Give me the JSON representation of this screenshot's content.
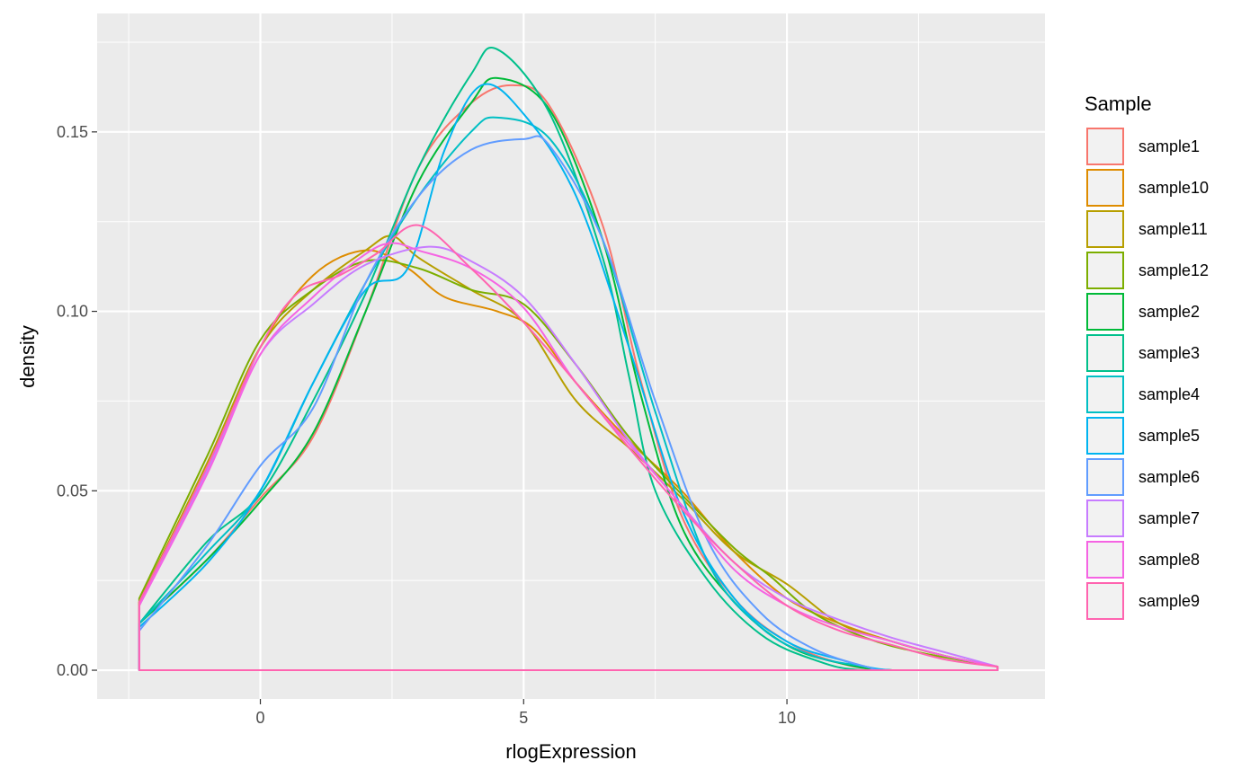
{
  "chart_data": {
    "type": "line",
    "subtype": "density",
    "title": "",
    "xlabel": "rlogExpression",
    "ylabel": "density",
    "xlim": [
      -3.1,
      14.9
    ],
    "ylim": [
      -0.008,
      0.183
    ],
    "x_ticks": [
      0,
      5,
      10
    ],
    "y_ticks": [
      0.0,
      0.05,
      0.1,
      0.15
    ],
    "x_tick_labels": [
      "0",
      "5",
      "10"
    ],
    "y_tick_labels": [
      "0.00",
      "0.05",
      "0.10",
      "0.15"
    ],
    "grid": true,
    "legend": {
      "title": "Sample",
      "position": "right"
    },
    "x_range": [
      -2.3,
      14.0
    ],
    "series": [
      {
        "name": "sample1",
        "color": "#F8766D",
        "group": "B",
        "points": [
          [
            -2.3,
            0.013
          ],
          [
            -1.0,
            0.031
          ],
          [
            0,
            0.048
          ],
          [
            1.0,
            0.065
          ],
          [
            2.0,
            0.1
          ],
          [
            3.0,
            0.14
          ],
          [
            4.0,
            0.158
          ],
          [
            4.8,
            0.163
          ],
          [
            5.5,
            0.157
          ],
          [
            6.5,
            0.124
          ],
          [
            7.2,
            0.082
          ],
          [
            8.0,
            0.043
          ],
          [
            9.0,
            0.02
          ],
          [
            10.0,
            0.008
          ],
          [
            11.0,
            0.002
          ],
          [
            12.0,
            0.0
          ]
        ]
      },
      {
        "name": "sample10",
        "color": "#DE8C00",
        "group": "A",
        "points": [
          [
            -2.3,
            0.019
          ],
          [
            -1.0,
            0.058
          ],
          [
            0,
            0.09
          ],
          [
            1.0,
            0.11
          ],
          [
            2.0,
            0.117
          ],
          [
            2.8,
            0.112
          ],
          [
            3.5,
            0.104
          ],
          [
            4.5,
            0.1
          ],
          [
            5.2,
            0.095
          ],
          [
            6.0,
            0.08
          ],
          [
            7.0,
            0.064
          ],
          [
            8.0,
            0.05
          ],
          [
            9.0,
            0.033
          ],
          [
            10.0,
            0.02
          ],
          [
            11.0,
            0.013
          ],
          [
            12.0,
            0.008
          ],
          [
            13.0,
            0.004
          ],
          [
            14.0,
            0.001
          ]
        ]
      },
      {
        "name": "sample11",
        "color": "#B79F00",
        "group": "A",
        "points": [
          [
            -2.3,
            0.019
          ],
          [
            -1.0,
            0.058
          ],
          [
            0,
            0.09
          ],
          [
            1.0,
            0.106
          ],
          [
            2.0,
            0.117
          ],
          [
            2.5,
            0.121
          ],
          [
            3.0,
            0.115
          ],
          [
            4.0,
            0.106
          ],
          [
            5.0,
            0.097
          ],
          [
            6.0,
            0.075
          ],
          [
            7.0,
            0.062
          ],
          [
            8.0,
            0.048
          ],
          [
            9.0,
            0.033
          ],
          [
            10.0,
            0.024
          ],
          [
            11.0,
            0.013
          ],
          [
            12.0,
            0.008
          ],
          [
            13.0,
            0.004
          ],
          [
            14.0,
            0.001
          ]
        ]
      },
      {
        "name": "sample12",
        "color": "#7CAE00",
        "group": "A",
        "points": [
          [
            -2.3,
            0.02
          ],
          [
            -1.0,
            0.06
          ],
          [
            0,
            0.092
          ],
          [
            1.0,
            0.106
          ],
          [
            2.0,
            0.114
          ],
          [
            3.0,
            0.112
          ],
          [
            4.0,
            0.106
          ],
          [
            5.0,
            0.102
          ],
          [
            6.0,
            0.085
          ],
          [
            7.0,
            0.065
          ],
          [
            8.0,
            0.049
          ],
          [
            9.0,
            0.034
          ],
          [
            9.7,
            0.026
          ],
          [
            10.5,
            0.016
          ],
          [
            11.5,
            0.009
          ],
          [
            12.5,
            0.005
          ],
          [
            14.0,
            0.001
          ]
        ]
      },
      {
        "name": "sample2",
        "color": "#00BA38",
        "group": "B",
        "points": [
          [
            -2.3,
            0.013
          ],
          [
            -1.0,
            0.031
          ],
          [
            0,
            0.047
          ],
          [
            1.0,
            0.066
          ],
          [
            2.0,
            0.1
          ],
          [
            3.0,
            0.136
          ],
          [
            4.0,
            0.158
          ],
          [
            4.5,
            0.165
          ],
          [
            5.5,
            0.156
          ],
          [
            6.5,
            0.12
          ],
          [
            7.2,
            0.078
          ],
          [
            8.0,
            0.04
          ],
          [
            9.0,
            0.019
          ],
          [
            10.0,
            0.007
          ],
          [
            11.0,
            0.002
          ],
          [
            12.0,
            0.0
          ]
        ]
      },
      {
        "name": "sample3",
        "color": "#00C08B",
        "group": "B",
        "points": [
          [
            -2.3,
            0.013
          ],
          [
            -1.0,
            0.036
          ],
          [
            0,
            0.049
          ],
          [
            1.0,
            0.075
          ],
          [
            2.0,
            0.105
          ],
          [
            3.0,
            0.14
          ],
          [
            4.0,
            0.166
          ],
          [
            4.5,
            0.173
          ],
          [
            5.5,
            0.155
          ],
          [
            6.5,
            0.115
          ],
          [
            7.0,
            0.082
          ],
          [
            7.5,
            0.05
          ],
          [
            8.5,
            0.025
          ],
          [
            9.5,
            0.01
          ],
          [
            10.5,
            0.003
          ],
          [
            11.5,
            0.0
          ]
        ]
      },
      {
        "name": "sample4",
        "color": "#00BFC4",
        "group": "B",
        "points": [
          [
            -2.3,
            0.013
          ],
          [
            -1.0,
            0.033
          ],
          [
            0,
            0.05
          ],
          [
            1.0,
            0.08
          ],
          [
            2.0,
            0.108
          ],
          [
            3.0,
            0.132
          ],
          [
            4.0,
            0.15
          ],
          [
            4.5,
            0.154
          ],
          [
            5.5,
            0.148
          ],
          [
            6.5,
            0.12
          ],
          [
            7.5,
            0.072
          ],
          [
            8.5,
            0.03
          ],
          [
            9.5,
            0.012
          ],
          [
            10.5,
            0.004
          ],
          [
            11.5,
            0.001
          ],
          [
            12.0,
            0.0
          ]
        ]
      },
      {
        "name": "sample5",
        "color": "#00B4F0",
        "group": "B",
        "points": [
          [
            -2.3,
            0.012
          ],
          [
            -1.0,
            0.03
          ],
          [
            0,
            0.05
          ],
          [
            1.0,
            0.08
          ],
          [
            2.0,
            0.106
          ],
          [
            2.8,
            0.112
          ],
          [
            3.5,
            0.145
          ],
          [
            4.2,
            0.163
          ],
          [
            5.0,
            0.155
          ],
          [
            6.0,
            0.132
          ],
          [
            7.0,
            0.09
          ],
          [
            8.0,
            0.045
          ],
          [
            9.0,
            0.02
          ],
          [
            10.0,
            0.008
          ],
          [
            11.0,
            0.003
          ],
          [
            12.0,
            0.0
          ]
        ]
      },
      {
        "name": "sample6",
        "color": "#619CFF",
        "group": "B",
        "points": [
          [
            -2.3,
            0.011
          ],
          [
            -1.0,
            0.035
          ],
          [
            0,
            0.057
          ],
          [
            1.0,
            0.073
          ],
          [
            2.0,
            0.108
          ],
          [
            3.0,
            0.132
          ],
          [
            4.0,
            0.145
          ],
          [
            5.0,
            0.148
          ],
          [
            5.5,
            0.146
          ],
          [
            6.5,
            0.12
          ],
          [
            7.5,
            0.075
          ],
          [
            8.5,
            0.036
          ],
          [
            9.5,
            0.016
          ],
          [
            10.5,
            0.006
          ],
          [
            11.5,
            0.001
          ],
          [
            12.0,
            0.0
          ]
        ]
      },
      {
        "name": "sample7",
        "color": "#C77CFF",
        "group": "A",
        "points": [
          [
            -2.3,
            0.018
          ],
          [
            -1.0,
            0.056
          ],
          [
            0,
            0.088
          ],
          [
            1.0,
            0.102
          ],
          [
            2.0,
            0.113
          ],
          [
            3.2,
            0.118
          ],
          [
            4.0,
            0.114
          ],
          [
            5.0,
            0.104
          ],
          [
            6.0,
            0.085
          ],
          [
            7.0,
            0.064
          ],
          [
            8.0,
            0.046
          ],
          [
            9.0,
            0.03
          ],
          [
            10.0,
            0.02
          ],
          [
            11.0,
            0.014
          ],
          [
            12.0,
            0.009
          ],
          [
            13.0,
            0.005
          ],
          [
            14.0,
            0.001
          ]
        ]
      },
      {
        "name": "sample8",
        "color": "#F564E3",
        "group": "A",
        "points": [
          [
            -2.3,
            0.018
          ],
          [
            -1.0,
            0.055
          ],
          [
            0,
            0.088
          ],
          [
            1.0,
            0.104
          ],
          [
            2.0,
            0.116
          ],
          [
            2.5,
            0.119
          ],
          [
            3.0,
            0.117
          ],
          [
            4.0,
            0.112
          ],
          [
            5.0,
            0.101
          ],
          [
            6.0,
            0.08
          ],
          [
            7.0,
            0.063
          ],
          [
            8.0,
            0.046
          ],
          [
            9.0,
            0.028
          ],
          [
            10.0,
            0.018
          ],
          [
            11.0,
            0.012
          ],
          [
            12.0,
            0.008
          ],
          [
            13.0,
            0.004
          ],
          [
            14.0,
            0.001
          ]
        ]
      },
      {
        "name": "sample9",
        "color": "#FF64B0",
        "group": "A",
        "points": [
          [
            -2.3,
            0.019
          ],
          [
            -1.0,
            0.057
          ],
          [
            0,
            0.09
          ],
          [
            0.7,
            0.105
          ],
          [
            1.5,
            0.11
          ],
          [
            2.2,
            0.116
          ],
          [
            3.0,
            0.124
          ],
          [
            4.0,
            0.112
          ],
          [
            5.0,
            0.097
          ],
          [
            6.0,
            0.08
          ],
          [
            7.0,
            0.062
          ],
          [
            8.0,
            0.045
          ],
          [
            9.0,
            0.03
          ],
          [
            10.0,
            0.018
          ],
          [
            11.0,
            0.011
          ],
          [
            12.0,
            0.007
          ],
          [
            13.0,
            0.003
          ],
          [
            14.0,
            0.001
          ]
        ]
      }
    ]
  }
}
